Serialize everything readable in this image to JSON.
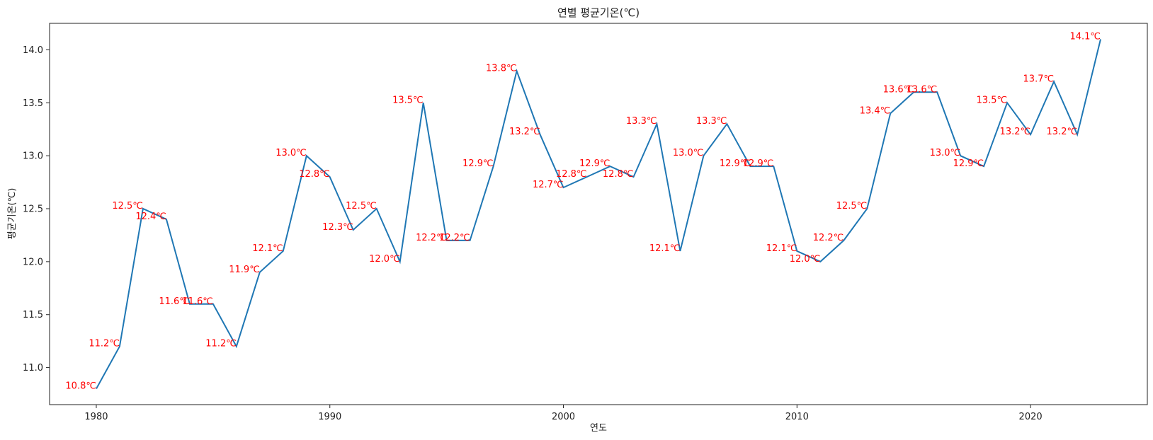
{
  "chart_data": {
    "type": "line",
    "title": "연별 평균기온(℃)",
    "xlabel": "연도",
    "ylabel": "평균기온(℃)",
    "xlim": [
      1978,
      2025
    ],
    "ylim": [
      10.65,
      14.25
    ],
    "xticks": [
      1980,
      1990,
      2000,
      2010,
      2020
    ],
    "yticks": [
      11.0,
      11.5,
      12.0,
      12.5,
      13.0,
      13.5,
      14.0
    ],
    "ytick_labels": [
      "11.0",
      "11.5",
      "12.0",
      "12.5",
      "13.0",
      "13.5",
      "14.0"
    ],
    "grid": false,
    "label_suffix": "℃",
    "line_color": "#1f77b4",
    "label_color": "#ff0000",
    "x": [
      1980,
      1981,
      1982,
      1983,
      1984,
      1985,
      1986,
      1987,
      1988,
      1989,
      1990,
      1991,
      1992,
      1993,
      1994,
      1995,
      1996,
      1997,
      1998,
      1999,
      2000,
      2001,
      2002,
      2003,
      2004,
      2005,
      2006,
      2007,
      2008,
      2009,
      2010,
      2011,
      2012,
      2013,
      2014,
      2015,
      2016,
      2017,
      2018,
      2019,
      2020,
      2021,
      2022,
      2023
    ],
    "y": [
      10.8,
      11.2,
      12.5,
      12.4,
      11.6,
      11.6,
      11.2,
      11.9,
      12.1,
      13.0,
      12.8,
      12.3,
      12.5,
      12.0,
      13.5,
      12.2,
      12.2,
      12.9,
      13.8,
      13.2,
      12.7,
      12.8,
      12.9,
      12.8,
      13.3,
      12.1,
      13.0,
      13.3,
      12.9,
      12.9,
      12.1,
      12.0,
      12.2,
      12.5,
      13.4,
      13.6,
      13.6,
      13.0,
      12.9,
      13.5,
      13.2,
      13.7,
      13.2,
      14.1
    ]
  }
}
